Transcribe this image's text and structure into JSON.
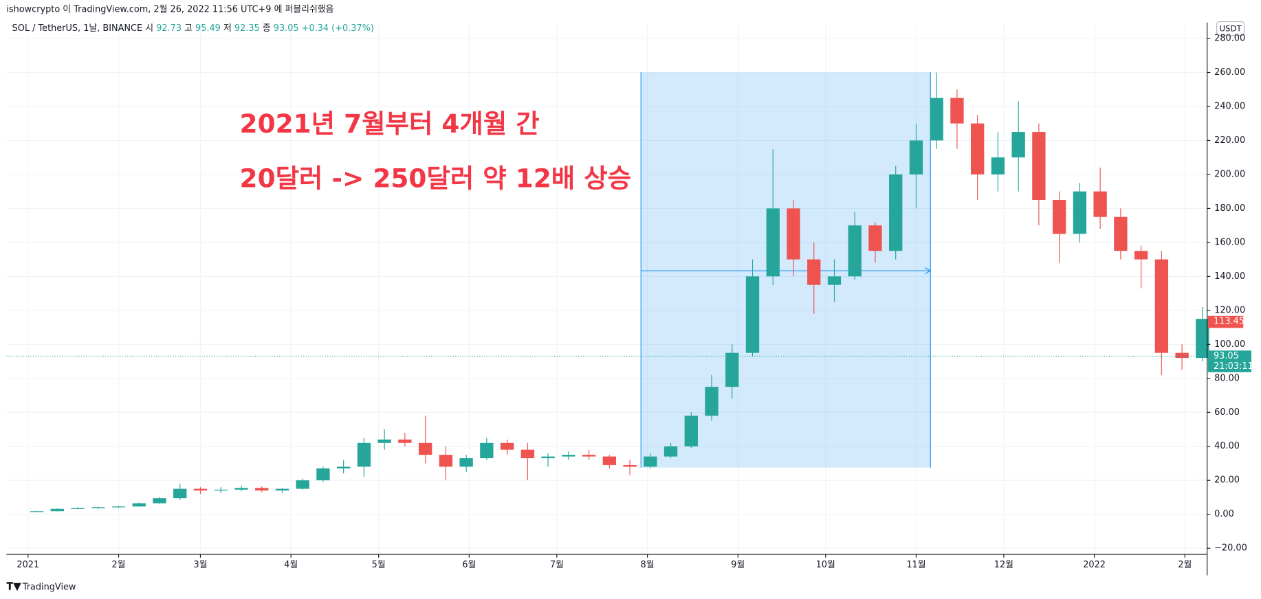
{
  "header": "ishowcrypto 이 TradingView.com, 2월 26, 2022 11:56 UTC+9 에 퍼블리쉬했음",
  "footer": "TradingView",
  "chart_data": {
    "type": "candlestick",
    "symbol": "SOL / TetherUS, 1날, BINANCE",
    "legend": {
      "open_label": "시",
      "open": 92.73,
      "high_label": "고",
      "high": 95.49,
      "low_label": "저",
      "low": 92.35,
      "close_label": "종",
      "close": 93.05,
      "change": "+0.34 (+0.37%)"
    },
    "currency": "USDT",
    "annotations": [
      "2021년 7월부터 4개월 간",
      "20달러 -> 250달러 약 12배 상승"
    ],
    "last_visible_price": 113.45,
    "current_price": 93.05,
    "countdown": "21:03:11",
    "up_color": "#26a69a",
    "down_color": "#ef5350",
    "xlim": [
      -7.4,
      403.6
    ],
    "xticks": [
      {
        "value": 0,
        "label": "2021"
      },
      {
        "value": 31,
        "label": "2월"
      },
      {
        "value": 59,
        "label": "3월"
      },
      {
        "value": 90,
        "label": "4월"
      },
      {
        "value": 120,
        "label": "5월"
      },
      {
        "value": 151,
        "label": "6월"
      },
      {
        "value": 181,
        "label": "7월"
      },
      {
        "value": 212,
        "label": "8월"
      },
      {
        "value": 243,
        "label": "9월"
      },
      {
        "value": 273,
        "label": "10월"
      },
      {
        "value": 304,
        "label": "11월"
      },
      {
        "value": 334,
        "label": "12월"
      },
      {
        "value": 365,
        "label": "2022"
      },
      {
        "value": 396,
        "label": "2월"
      }
    ],
    "ylim": [
      -23.6,
      289.4
    ],
    "yticks": [
      {
        "value": -20,
        "label": "−20.00"
      },
      {
        "value": 0,
        "label": "0.00"
      },
      {
        "value": 20,
        "label": "20.00"
      },
      {
        "value": 40,
        "label": "40.00"
      },
      {
        "value": 60,
        "label": "60.00"
      },
      {
        "value": 80,
        "label": "80.00"
      },
      {
        "value": 100,
        "label": "100.00"
      },
      {
        "value": 120,
        "label": "120.00"
      },
      {
        "value": 140,
        "label": "140.00"
      },
      {
        "value": 160,
        "label": "160.00"
      },
      {
        "value": 180,
        "label": "180.00"
      },
      {
        "value": 200,
        "label": "200.00"
      },
      {
        "value": 220,
        "label": "220.00"
      },
      {
        "value": 240,
        "label": "240.00"
      },
      {
        "value": 260,
        "label": "260.00"
      },
      {
        "value": 280,
        "label": "280.00"
      }
    ],
    "grid": true,
    "x": [
      3,
      10,
      17,
      24,
      31,
      38,
      45,
      52,
      59,
      66,
      73,
      80,
      87,
      94,
      101,
      108,
      115,
      122,
      129,
      136,
      143,
      150,
      157,
      164,
      171,
      178,
      185,
      192,
      199,
      206,
      213,
      220,
      227,
      234,
      241,
      248,
      255,
      262,
      269,
      276,
      283,
      290,
      297,
      304,
      311,
      318,
      325,
      332,
      339,
      346,
      353,
      360,
      367,
      374,
      381,
      388,
      395,
      402
    ],
    "open": [
      1.5,
      1.8,
      3.2,
      3.6,
      4.2,
      4.6,
      6.5,
      9.5,
      15,
      14,
      14.5,
      15.5,
      14,
      15,
      20,
      27,
      28,
      42,
      44,
      42,
      35,
      28,
      33,
      42,
      38,
      33,
      34,
      35,
      34,
      29,
      28,
      34,
      40,
      58,
      75,
      95,
      140,
      180,
      150,
      135,
      140,
      170,
      155,
      200,
      220,
      245,
      230,
      200,
      210,
      225,
      185,
      165,
      190,
      175,
      155,
      150,
      95,
      92
    ],
    "high": [
      2,
      3.5,
      4.2,
      4.5,
      5,
      7,
      10,
      18,
      16,
      16,
      17,
      16.5,
      15.5,
      21,
      28,
      32,
      45,
      50,
      48,
      58,
      40,
      35,
      45,
      44,
      42,
      36,
      37,
      38,
      35,
      32,
      36,
      42,
      60,
      82,
      100,
      150,
      215,
      185,
      160,
      150,
      178,
      172,
      205,
      230,
      260,
      250,
      235,
      225,
      243,
      230,
      190,
      195,
      204,
      180,
      158,
      155,
      100,
      122
    ],
    "low": [
      1.3,
      1.7,
      2.9,
      3.2,
      3.8,
      4.4,
      6.2,
      8.5,
      12,
      12.5,
      13.5,
      13,
      12.5,
      14.5,
      19,
      24,
      22,
      38,
      40,
      30,
      20,
      25,
      32,
      35,
      20,
      28,
      32,
      32,
      27,
      23,
      27,
      33,
      39,
      55,
      68,
      93,
      135,
      140,
      118,
      125,
      138,
      148,
      150,
      180,
      215,
      215,
      185,
      190,
      190,
      170,
      148,
      160,
      168,
      150,
      133,
      82,
      85,
      90
    ],
    "close": [
      1.8,
      3.2,
      3.6,
      4.2,
      4.6,
      6.5,
      9.5,
      15,
      14,
      14.5,
      15.5,
      14,
      15,
      20,
      27,
      28,
      42,
      44,
      42,
      35,
      28,
      33,
      42,
      38,
      33,
      34,
      35,
      34,
      29,
      28,
      34,
      40,
      58,
      75,
      95,
      140,
      180,
      150,
      135,
      140,
      170,
      155,
      200,
      220,
      245,
      230,
      200,
      210,
      225,
      185,
      165,
      190,
      175,
      155,
      150,
      95,
      92,
      115
    ]
  }
}
